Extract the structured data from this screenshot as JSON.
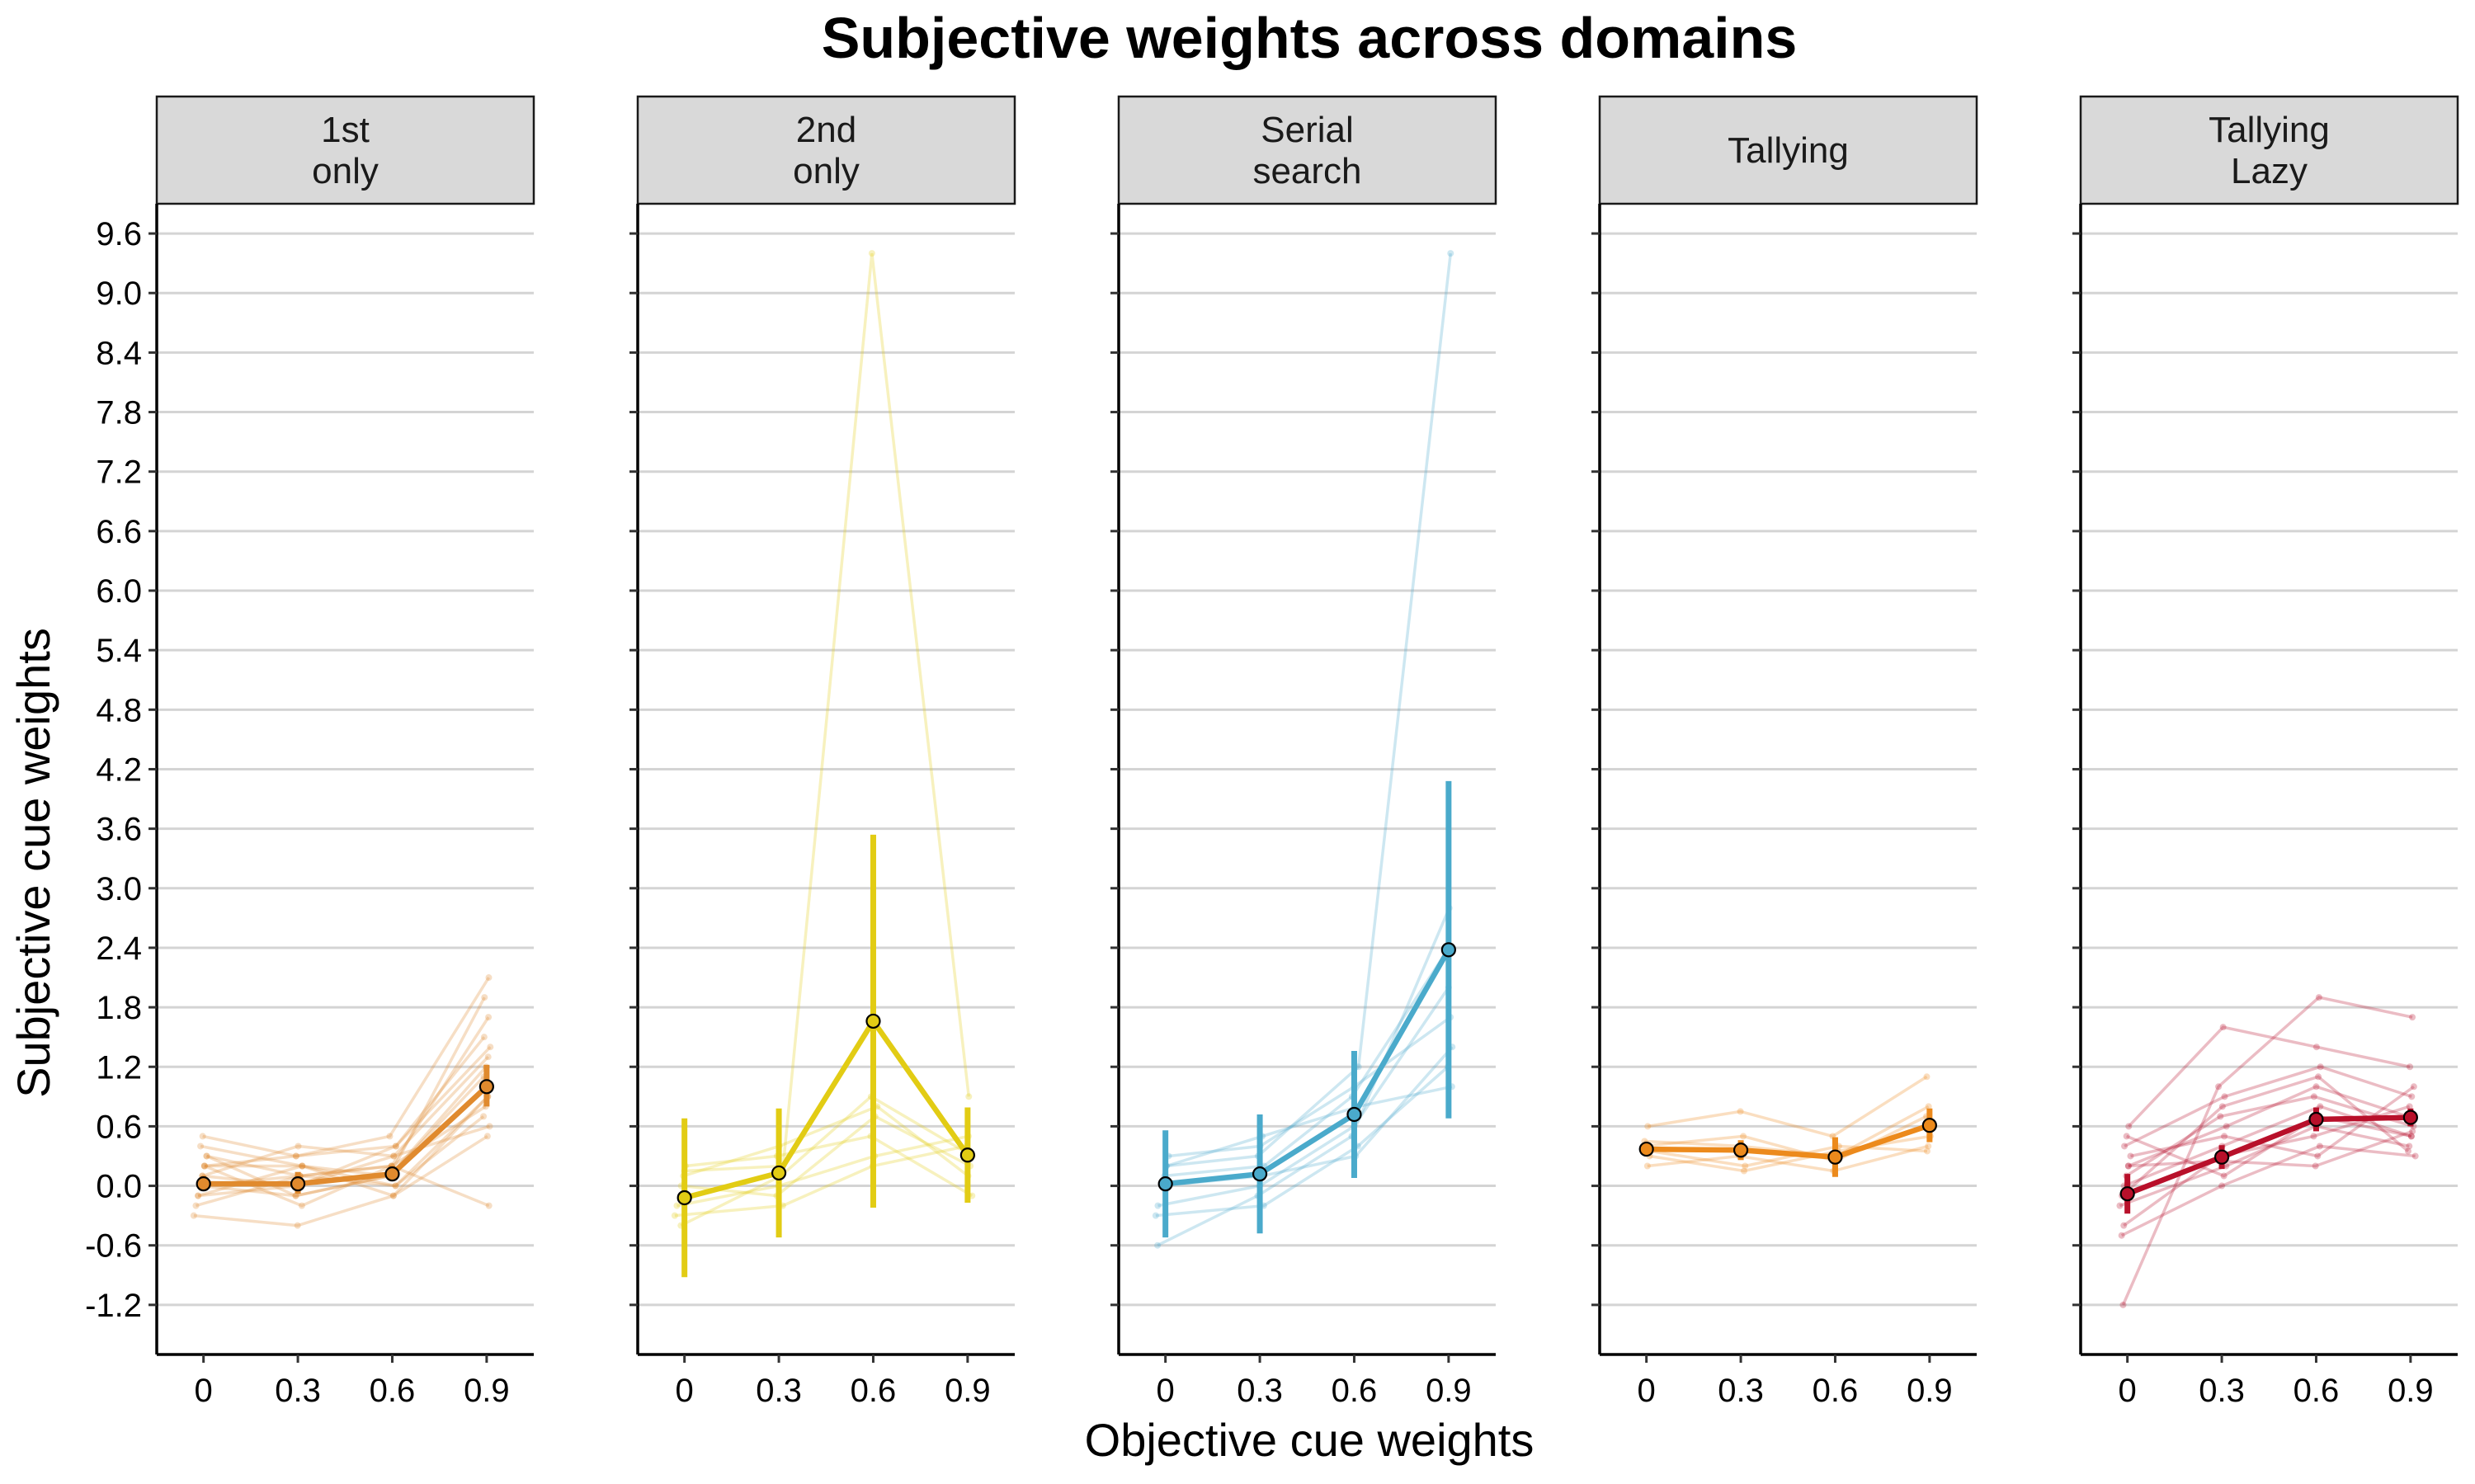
{
  "chart_data": {
    "type": "line",
    "title": "Subjective weights across domains",
    "xlabel": "Objective cue weights",
    "ylabel": "Subjective cue weights",
    "x": [
      0,
      0.3,
      0.6,
      0.9
    ],
    "x_tick_labels": [
      "0",
      "0.3",
      "0.6",
      "0.9"
    ],
    "y_ticks": [
      -1.2,
      -0.6,
      0.0,
      0.6,
      1.2,
      1.8,
      2.4,
      3.0,
      3.6,
      4.2,
      4.8,
      5.4,
      6.0,
      6.6,
      7.2,
      7.8,
      8.4,
      9.0,
      9.6
    ],
    "y_tick_labels": [
      "-1.2",
      "-0.6",
      "0.0",
      "0.6",
      "1.2",
      "1.8",
      "2.4",
      "3.0",
      "3.6",
      "4.2",
      "4.8",
      "5.4",
      "6.0",
      "6.6",
      "7.2",
      "7.8",
      "8.4",
      "9.0",
      "9.6"
    ],
    "ylim": [
      -1.7,
      9.9
    ],
    "grid": "horizontal major",
    "panels": [
      {
        "label_lines": [
          "1st",
          "only"
        ],
        "color": "#E08A2E",
        "mean": [
          0.02,
          0.02,
          0.12,
          1.0
        ],
        "error_low": [
          -0.05,
          -0.08,
          0.06,
          0.8
        ],
        "error_high": [
          0.1,
          0.14,
          0.2,
          1.22
        ],
        "individual": [
          [
            0.5,
            0.3,
            0.5,
            2.1
          ],
          [
            0.4,
            0.2,
            0.1,
            1.9
          ],
          [
            0.3,
            0.1,
            0.2,
            1.7
          ],
          [
            0.2,
            0.3,
            0.4,
            1.5
          ],
          [
            0.1,
            0.0,
            0.3,
            1.3
          ],
          [
            0.0,
            -0.1,
            0.1,
            1.1
          ],
          [
            -0.1,
            0.2,
            0.0,
            0.9
          ],
          [
            0.2,
            -0.2,
            0.2,
            0.8
          ],
          [
            -0.2,
            0.1,
            0.0,
            0.7
          ],
          [
            0.1,
            0.4,
            0.3,
            0.6
          ],
          [
            -0.3,
            -0.4,
            -0.1,
            0.5
          ],
          [
            0.0,
            0.1,
            0.2,
            -0.2
          ],
          [
            0.3,
            -0.1,
            0.1,
            1.2
          ],
          [
            -0.1,
            0.0,
            0.4,
            1.4
          ],
          [
            0.2,
            0.2,
            -0.1,
            0.9
          ]
        ]
      },
      {
        "label_lines": [
          "2nd",
          "only"
        ],
        "color": "#E2CC14",
        "mean": [
          -0.12,
          0.13,
          1.66,
          0.31
        ],
        "error_low": [
          -0.92,
          -0.52,
          -0.22,
          -0.17
        ],
        "error_high": [
          0.68,
          0.78,
          3.54,
          0.79
        ],
        "individual": [
          [
            0.15,
            0.2,
            9.4,
            0.9
          ],
          [
            -0.4,
            0.1,
            0.9,
            0.3
          ],
          [
            0.0,
            -0.1,
            0.7,
            0.2
          ],
          [
            0.2,
            0.3,
            0.5,
            -0.1
          ],
          [
            -0.2,
            0.0,
            0.3,
            0.5
          ],
          [
            0.1,
            0.4,
            0.8,
            0.1
          ],
          [
            -0.3,
            -0.2,
            0.2,
            0.4
          ]
        ]
      },
      {
        "label_lines": [
          "Serial",
          "search"
        ],
        "color": "#4AAACB",
        "mean": [
          0.02,
          0.12,
          0.72,
          2.38
        ],
        "error_low": [
          -0.52,
          -0.48,
          0.08,
          0.68
        ],
        "error_high": [
          0.56,
          0.72,
          1.36,
          4.08
        ],
        "individual": [
          [
            0.2,
            0.3,
            1.2,
            9.4
          ],
          [
            -0.6,
            -0.1,
            0.5,
            2.8
          ],
          [
            0.1,
            0.2,
            0.9,
            2.4
          ],
          [
            -0.2,
            0.0,
            0.6,
            2.0
          ],
          [
            0.3,
            0.4,
            1.0,
            1.7
          ],
          [
            0.0,
            0.1,
            0.3,
            1.4
          ],
          [
            -0.3,
            -0.2,
            0.4,
            1.2
          ],
          [
            0.2,
            0.5,
            0.8,
            1.0
          ]
        ]
      },
      {
        "label_lines": [
          "Tallying"
        ],
        "color": "#EC8A1C",
        "mean": [
          0.37,
          0.36,
          0.29,
          0.61
        ],
        "error_low": [
          0.31,
          0.26,
          0.09,
          0.44
        ],
        "error_high": [
          0.43,
          0.46,
          0.49,
          0.78
        ],
        "individual": [
          [
            0.6,
            0.75,
            0.5,
            1.1
          ],
          [
            0.45,
            0.4,
            0.3,
            0.8
          ],
          [
            0.3,
            0.15,
            0.35,
            0.5
          ],
          [
            0.2,
            0.3,
            0.15,
            0.4
          ],
          [
            0.4,
            0.5,
            0.25,
            0.7
          ],
          [
            0.35,
            0.2,
            0.4,
            0.35
          ]
        ]
      },
      {
        "label_lines": [
          "Tallying",
          "Lazy"
        ],
        "color": "#B8102A",
        "mean": [
          -0.08,
          0.29,
          0.67,
          0.69
        ],
        "error_low": [
          -0.28,
          0.17,
          0.55,
          0.6
        ],
        "error_high": [
          0.12,
          0.41,
          0.79,
          0.78
        ],
        "individual": [
          [
            -1.2,
            1.0,
            1.9,
            1.7
          ],
          [
            0.6,
            1.6,
            1.4,
            1.2
          ],
          [
            0.4,
            0.9,
            1.2,
            0.9
          ],
          [
            0.2,
            0.6,
            1.0,
            0.7
          ],
          [
            0.0,
            0.4,
            0.8,
            0.5
          ],
          [
            -0.2,
            0.2,
            0.6,
            0.4
          ],
          [
            -0.5,
            0.0,
            0.4,
            0.3
          ],
          [
            0.3,
            0.5,
            0.3,
            1.0
          ],
          [
            0.1,
            0.7,
            0.9,
            0.6
          ],
          [
            -0.4,
            0.3,
            0.5,
            0.8
          ],
          [
            0.5,
            0.1,
            0.7,
            0.5
          ],
          [
            -0.1,
            0.8,
            1.1,
            0.35
          ],
          [
            0.2,
            0.25,
            0.2,
            0.55
          ]
        ]
      }
    ]
  }
}
